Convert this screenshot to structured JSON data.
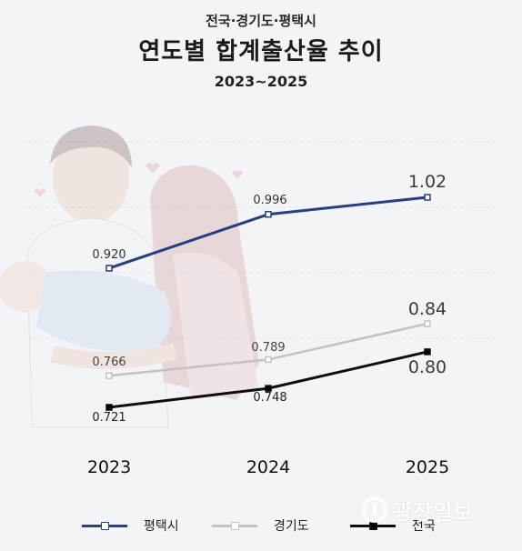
{
  "header": {
    "subtitle": "전국·경기도·평택시",
    "title": "연도별 합계출산율 추이",
    "period": "2023~2025"
  },
  "watermark": {
    "text": "광장일보"
  },
  "chart_data": {
    "type": "line",
    "x": [
      "2023",
      "2024",
      "2025"
    ],
    "series": [
      {
        "name": "평택시",
        "color": "#263f7f",
        "values": [
          0.92,
          0.996,
          1.02
        ],
        "labels": [
          "0.920",
          "0.996",
          "1.02"
        ]
      },
      {
        "name": "경기도",
        "color": "#c2c2c4",
        "values": [
          0.766,
          0.789,
          0.84
        ],
        "labels": [
          "0.766",
          "0.789",
          "0.84"
        ]
      },
      {
        "name": "전국",
        "color": "#0d0d0d",
        "values": [
          0.721,
          0.748,
          0.8
        ],
        "labels": [
          "0.721",
          "0.748",
          "0.80"
        ]
      }
    ],
    "legend_position": "bottom",
    "grid": false
  }
}
